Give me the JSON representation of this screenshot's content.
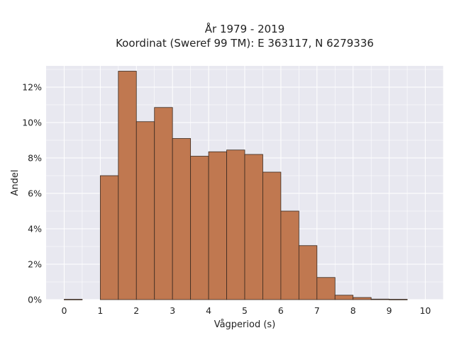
{
  "chart_data": {
    "type": "bar",
    "title_line1": "År 1979 - 2019",
    "title_line2": "Koordinat (Sweref 99 TM): E 363117, N 6279336",
    "xlabel": "Vågperiod (s)",
    "ylabel": "Andel",
    "xlim": [
      -0.5,
      10.5
    ],
    "ylim": [
      0,
      13.2
    ],
    "x_ticks": [
      0,
      1,
      2,
      3,
      4,
      5,
      6,
      7,
      8,
      9,
      10
    ],
    "y_ticks": [
      0,
      2,
      4,
      6,
      8,
      10,
      12
    ],
    "y_tick_labels": [
      "0%",
      "2%",
      "4%",
      "6%",
      "8%",
      "10%",
      "12%"
    ],
    "bin_width": 0.5,
    "bin_starts": [
      0,
      0.5,
      1,
      1.5,
      2,
      2.5,
      3,
      3.5,
      4,
      4.5,
      5,
      5.5,
      6,
      6.5,
      7,
      7.5,
      8,
      8.5,
      9,
      9.5
    ],
    "values": [
      0.02,
      0,
      7.0,
      12.9,
      10.05,
      10.85,
      9.1,
      8.1,
      8.35,
      8.45,
      8.2,
      7.2,
      5.0,
      3.05,
      1.25,
      0.25,
      0.12,
      0.03,
      0.02,
      0
    ],
    "grid": true,
    "colors": {
      "bar": "#c07850",
      "bar_edge": "#3a2a20",
      "plot_bg": "#e8e8f0",
      "grid": "#ffffff"
    }
  }
}
